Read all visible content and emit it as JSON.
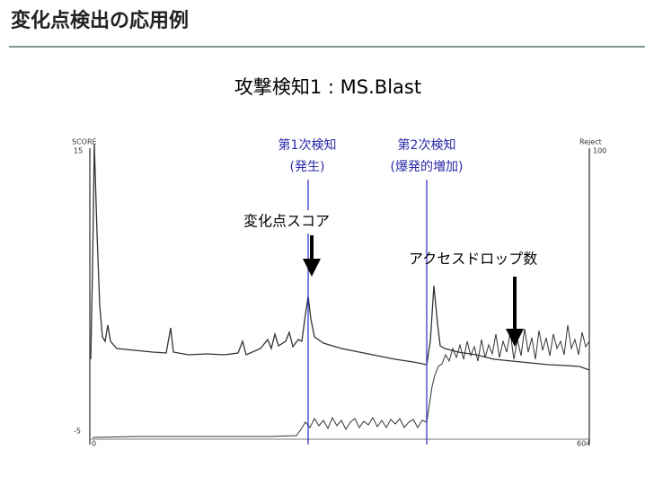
{
  "header": {
    "title": "変化点検出の応用例"
  },
  "subtitle": "攻撃検知1 : MS.Blast",
  "figure": {
    "annotations": {
      "first_detection": "第1次検知",
      "first_detection_note": "(発生)",
      "second_detection": "第2次検知",
      "second_detection_note": "(爆発的増加)",
      "score_label": "変化点スコア",
      "drop_label": "アクセスドロップ数"
    },
    "axis_texts": {
      "left_name": "SCORE",
      "left_top": "15",
      "left_bottom": "-5",
      "right_name": "Reject",
      "right_top": "100",
      "x_start": "0",
      "x_end": "604"
    }
  }
}
